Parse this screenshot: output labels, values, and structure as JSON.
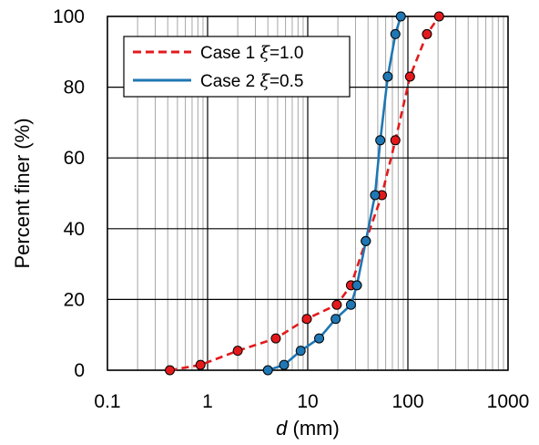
{
  "chart_data": {
    "type": "line",
    "x_scale": "log",
    "xlim": [
      0.1,
      1000
    ],
    "ylim": [
      0,
      100
    ],
    "x_ticks": [
      "0.1",
      "1",
      "10",
      "100",
      "1000"
    ],
    "y_ticks": [
      "0",
      "20",
      "40",
      "60",
      "80",
      "100"
    ],
    "xlabel_var": "d",
    "xlabel_unit": " (mm)",
    "ylabel": "Percent finer (%)",
    "grid": true,
    "legend_position": "top-left",
    "series": [
      {
        "name": "Case 1 ξ=1.0",
        "color": "#e31a1c",
        "line_style": "dashed",
        "points": [
          {
            "x": 0.42,
            "y": 0
          },
          {
            "x": 0.85,
            "y": 1.5
          },
          {
            "x": 2.0,
            "y": 5.5
          },
          {
            "x": 4.8,
            "y": 9
          },
          {
            "x": 9.8,
            "y": 14.5
          },
          {
            "x": 19.5,
            "y": 18.5
          },
          {
            "x": 27,
            "y": 24
          },
          {
            "x": 38,
            "y": 36.5
          },
          {
            "x": 55,
            "y": 49.5
          },
          {
            "x": 75,
            "y": 65
          },
          {
            "x": 105,
            "y": 83
          },
          {
            "x": 155,
            "y": 95
          },
          {
            "x": 205,
            "y": 100
          }
        ]
      },
      {
        "name": "Case 2 ξ=0.5",
        "color": "#1f77b4",
        "line_style": "solid",
        "points": [
          {
            "x": 4.0,
            "y": 0
          },
          {
            "x": 5.8,
            "y": 1.5
          },
          {
            "x": 8.5,
            "y": 5.5
          },
          {
            "x": 13,
            "y": 9
          },
          {
            "x": 19,
            "y": 14.5
          },
          {
            "x": 27,
            "y": 18.5
          },
          {
            "x": 31,
            "y": 24
          },
          {
            "x": 38,
            "y": 36.5
          },
          {
            "x": 47,
            "y": 49.5
          },
          {
            "x": 53,
            "y": 65
          },
          {
            "x": 63,
            "y": 83
          },
          {
            "x": 75,
            "y": 95
          },
          {
            "x": 85,
            "y": 100
          }
        ]
      }
    ],
    "legend": [
      {
        "label": "Case 1 ",
        "symbol": "ξ",
        "value": "=1.0"
      },
      {
        "label": "Case 2 ",
        "symbol": "ξ",
        "value": "=0.5"
      }
    ]
  }
}
